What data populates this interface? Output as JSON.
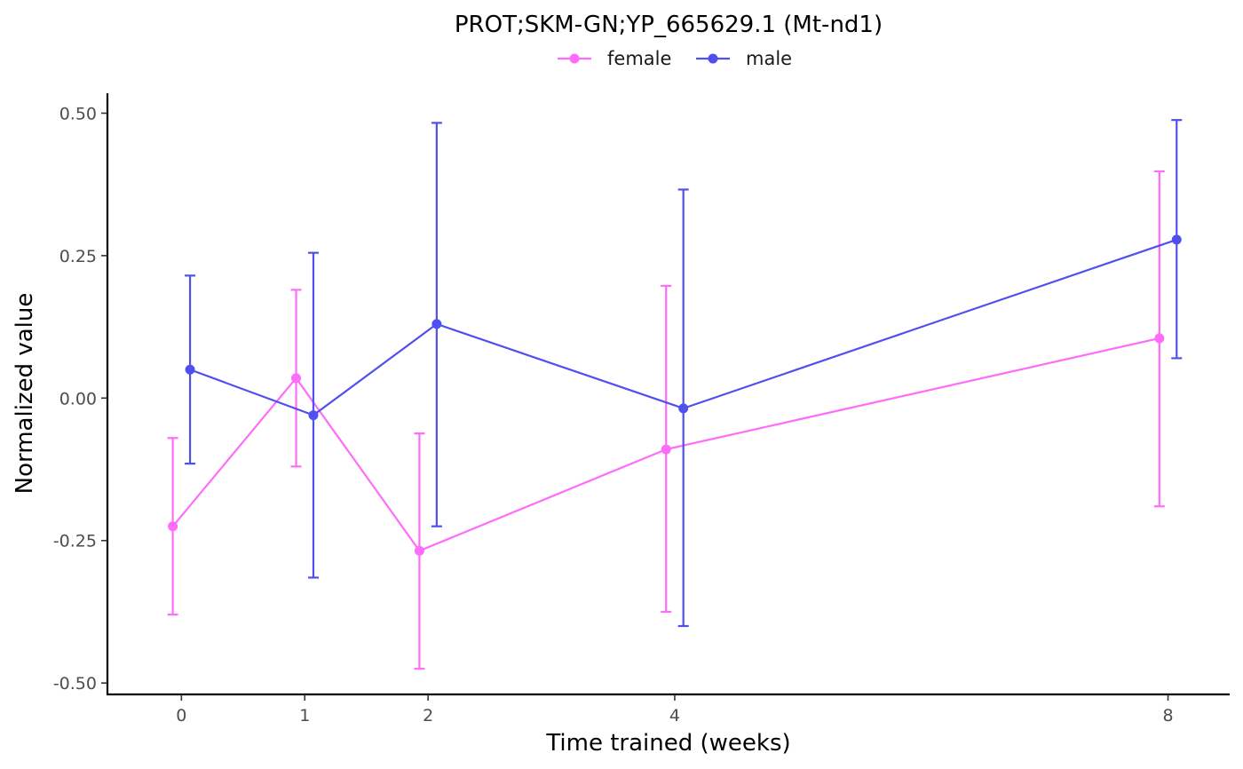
{
  "chart_data": {
    "type": "line",
    "title": "PROT;SKM-GN;YP_665629.1 (Mt-nd1)",
    "xlabel": "Time trained (weeks)",
    "ylabel": "Normalized value",
    "x": [
      0,
      1,
      2,
      4,
      8
    ],
    "x_tick_labels": [
      "0",
      "1",
      "2",
      "4",
      "8"
    ],
    "x_is_categorical_spacing_by_value": true,
    "xlim": [
      -0.6,
      8.5
    ],
    "ylim": [
      -0.52,
      0.535
    ],
    "y_ticks": [
      0.5,
      0.25,
      0.0,
      -0.25,
      -0.5
    ],
    "y_tick_labels": [
      "0.50",
      "0.25",
      "0.00",
      "-0.25",
      "-0.50"
    ],
    "grid": false,
    "legend_position": "top",
    "series": [
      {
        "name": "female",
        "color": "#ff6cf9",
        "values": [
          -0.225,
          0.035,
          -0.268,
          -0.09,
          0.105
        ],
        "error_low": [
          -0.38,
          -0.12,
          -0.475,
          -0.375,
          -0.19
        ],
        "error_high": [
          -0.07,
          0.19,
          -0.062,
          0.197,
          0.398
        ]
      },
      {
        "name": "male",
        "color": "#5050ee",
        "values": [
          0.05,
          -0.03,
          0.13,
          -0.018,
          0.278
        ],
        "error_low": [
          -0.115,
          -0.315,
          -0.225,
          -0.4,
          0.07
        ],
        "error_high": [
          0.215,
          0.255,
          0.483,
          0.366,
          0.488
        ]
      }
    ]
  }
}
